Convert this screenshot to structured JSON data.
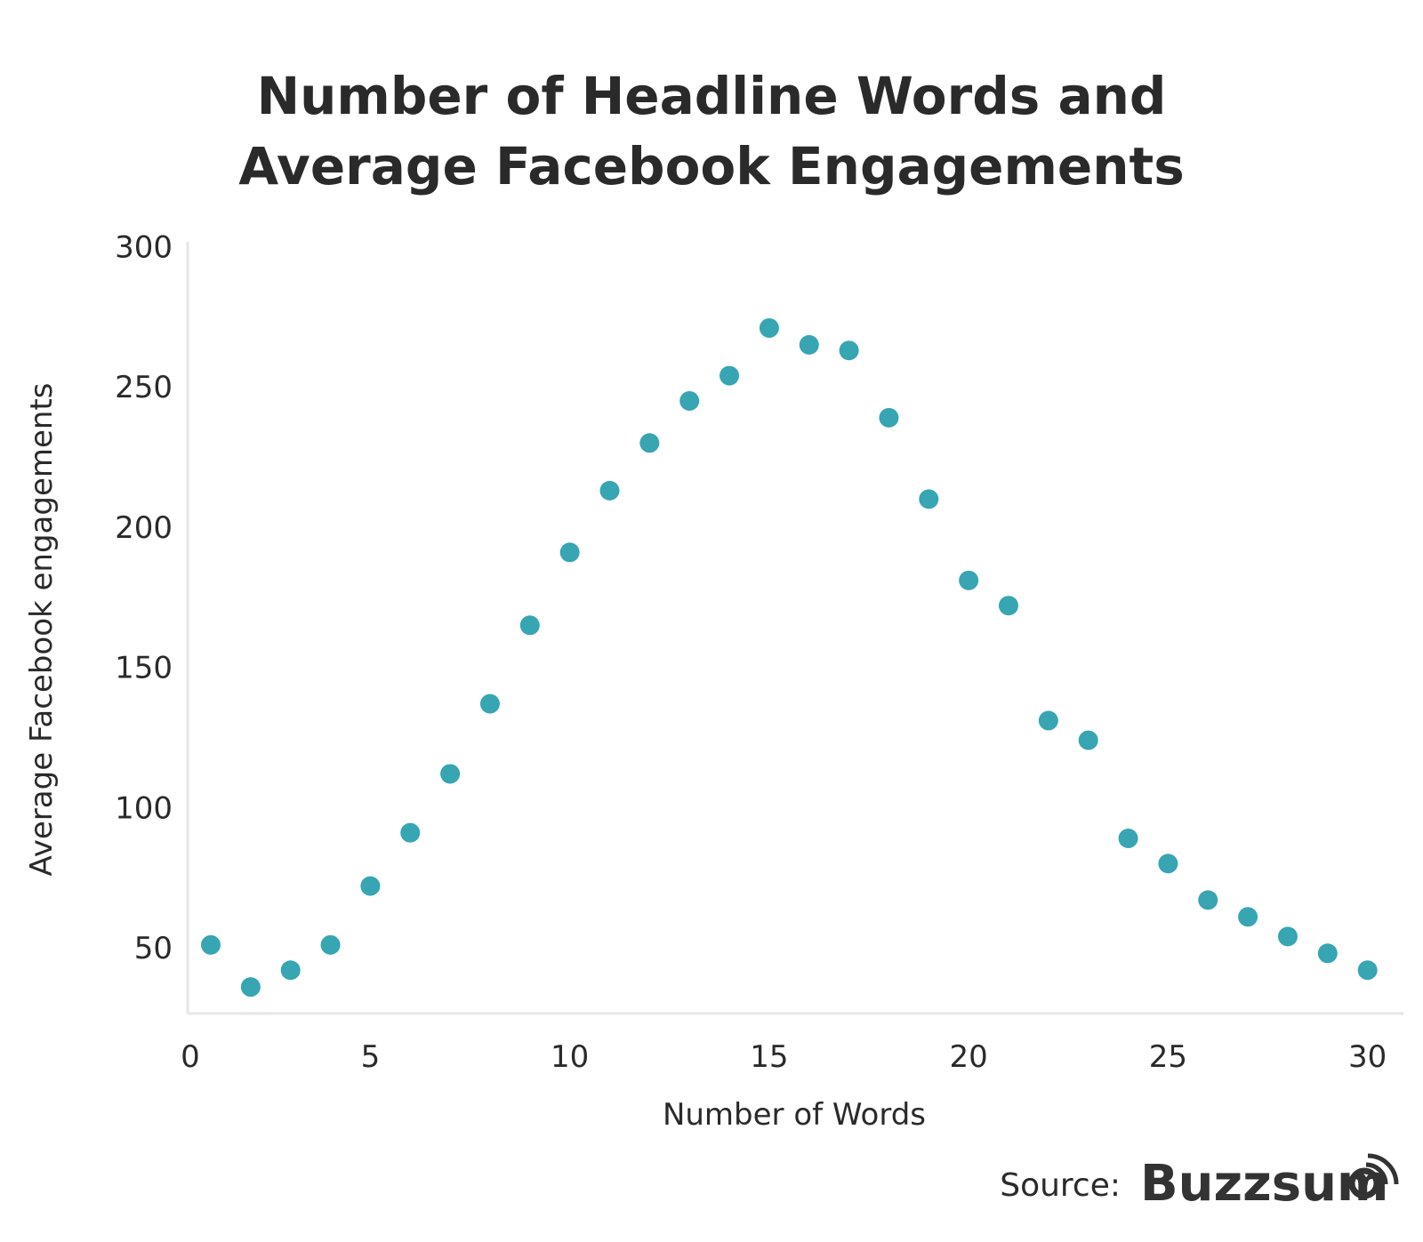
{
  "chart_data": {
    "type": "scatter",
    "title_lines": [
      "Number of Headline Words and",
      "Average Facebook Engagements"
    ],
    "xlabel": "Number of Words",
    "ylabel": "Average Facebook engagements",
    "x_ticks": [
      0,
      5,
      10,
      15,
      20,
      25,
      30
    ],
    "y_ticks": [
      50,
      100,
      150,
      200,
      250,
      300
    ],
    "xlim": [
      0,
      30
    ],
    "ylim": [
      27,
      300
    ],
    "grid": false,
    "marker_color": "#37a5b2",
    "x": [
      1,
      2,
      3,
      4,
      5,
      6,
      7,
      8,
      9,
      10,
      11,
      12,
      13,
      14,
      15,
      16,
      17,
      18,
      19,
      20,
      21,
      22,
      23,
      24,
      25,
      26,
      27,
      28,
      29,
      30
    ],
    "y": [
      51,
      36,
      42,
      51,
      72,
      91,
      112,
      137,
      165,
      191,
      213,
      230,
      245,
      254,
      271,
      265,
      263,
      239,
      210,
      181,
      172,
      131,
      124,
      89,
      80,
      67,
      61,
      54,
      48,
      42
    ]
  },
  "source": {
    "label": "Source:",
    "logo_text": "Buzzsumo"
  }
}
